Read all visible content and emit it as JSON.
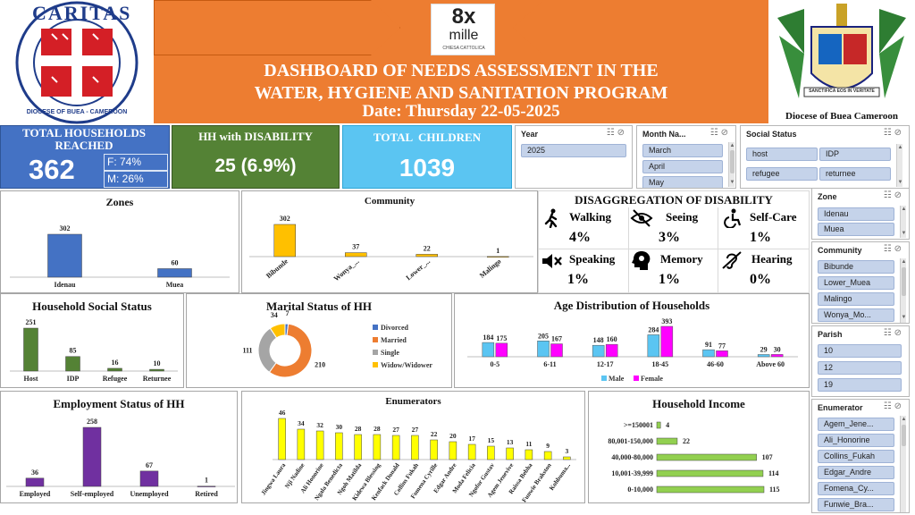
{
  "header": {
    "title_line1": "DASHBOARD OF NEEDS ASSESSMENT IN THE",
    "title_line2": "WATER, HYGIENE AND SANITATION PROGRAM",
    "date_line": "Date: Thursday 22-05-2025",
    "logo_left_text": "CARITAS",
    "logo_left_ring": "DIOCESE OF BUEA - CAMEROON",
    "logo_center_big": "8x",
    "logo_center_mille": "mille",
    "logo_center_sub": "CHIESA CATTOLICA",
    "right_caption": "Diocese of Buea Cameroon",
    "crest_motto": "SANCTIFICA EOS IN VERITATE",
    "colors": {
      "orange": "#ed7d31",
      "blue": "#4472c4",
      "green": "#548235",
      "cyan": "#5bc5f2"
    }
  },
  "kpis": {
    "households_label": "TOTAL HOUSEHOLDS REACHED",
    "households_value": "362",
    "female_pct": "F: 74%",
    "male_pct": "M: 26%",
    "disability_label": "HH with DISABILITY",
    "disability_value": "25 (6.9%)",
    "children_label": "TOTAL  CHILDREN",
    "children_value": "1039"
  },
  "slicers": {
    "year": {
      "title": "Year",
      "items": [
        "2025"
      ]
    },
    "month": {
      "title": "Month Na...",
      "items": [
        "March",
        "April",
        "May"
      ]
    },
    "social": {
      "title": "Social Status",
      "items": [
        "host",
        "IDP",
        "refugee",
        "returnee"
      ]
    },
    "zone": {
      "title": "Zone",
      "items": [
        "Idenau",
        "Muea"
      ]
    },
    "community": {
      "title": "Community",
      "items": [
        "Bibunde",
        "Lower_Muea",
        "Malingo",
        "Wonya_Mo..."
      ]
    },
    "parish": {
      "title": "Parish",
      "items": [
        "10",
        "12",
        "19"
      ]
    },
    "enumerator": {
      "title": "Enumerator",
      "items": [
        "Agem_Jene...",
        "Ali_Honorine",
        "Collins_Fukah",
        "Edgar_Andre",
        "Fomena_Cy...",
        "Funwie_Bra..."
      ]
    }
  },
  "disability": {
    "title": "DISAGGREGATION OF DISABILITY",
    "items": [
      {
        "label": "Walking",
        "value": "4%",
        "icon": "walking-icon"
      },
      {
        "label": "Seeing",
        "value": "3%",
        "icon": "eye-slash-icon"
      },
      {
        "label": "Self-Care",
        "value": "1%",
        "icon": "wheelchair-icon"
      },
      {
        "label": "Speaking",
        "value": "1%",
        "icon": "speaker-mute-icon"
      },
      {
        "label": "Memory",
        "value": "1%",
        "icon": "head-gear-icon"
      },
      {
        "label": "Hearing",
        "value": "0%",
        "icon": "ear-slash-icon"
      }
    ]
  },
  "chart_data": [
    {
      "id": "zones",
      "type": "bar",
      "title": "Zones",
      "categories": [
        "Idenau",
        "Muea"
      ],
      "values": [
        302,
        60
      ],
      "color": "#4472c4"
    },
    {
      "id": "community",
      "type": "bar",
      "title": "Community",
      "categories": [
        "Bibunde",
        "Wonya_...",
        "Lower_...",
        "Malingo"
      ],
      "values": [
        302,
        37,
        22,
        1
      ],
      "color": "#ffc000"
    },
    {
      "id": "social",
      "type": "bar",
      "title": "Household Social Status",
      "categories": [
        "Host",
        "IDP",
        "Refugee",
        "Returnee"
      ],
      "values": [
        251,
        85,
        16,
        10
      ],
      "color": "#548235"
    },
    {
      "id": "marital",
      "type": "pie",
      "title": "Marital Status of HH",
      "categories": [
        "Divorced",
        "Married",
        "Single",
        "Widow/Widower"
      ],
      "values": [
        7,
        210,
        111,
        34
      ],
      "colors": [
        "#4472c4",
        "#ed7d31",
        "#a5a5a5",
        "#ffc000"
      ]
    },
    {
      "id": "age",
      "type": "bar",
      "title": "Age Distribution of Households",
      "categories": [
        "0-5",
        "6-11",
        "12-17",
        "18-45",
        "46-60",
        "Above 60"
      ],
      "series": [
        {
          "name": "Male",
          "values": [
            184,
            205,
            148,
            284,
            91,
            29
          ],
          "color": "#5bc5f2"
        },
        {
          "name": "Female",
          "values": [
            175,
            167,
            160,
            393,
            77,
            30
          ],
          "color": "#ff00ff"
        }
      ]
    },
    {
      "id": "employment",
      "type": "bar",
      "title": "Employment Status of HH",
      "categories": [
        "Employed",
        "Self-employed",
        "Unemployed",
        "Retired"
      ],
      "values": [
        36,
        258,
        67,
        1
      ],
      "color": "#7030a0"
    },
    {
      "id": "enumerators",
      "type": "bar",
      "title": "Enumerators",
      "categories": [
        "Jingwa Laura",
        "Nji Nadine",
        "Ali Honorine",
        "Ngala Benedicta",
        "Ngoh Matilda",
        "Kidewa Blessing",
        "Kenfack Donald",
        "Collins Fukah",
        "Fomena Cyrille",
        "Edgar Andre",
        "Moda Felicia",
        "Ngofor Gustav",
        "Agem Jenevive",
        "Raissa Bebha",
        "Funwie Brakston",
        "Kohbuma..."
      ],
      "values": [
        46,
        34,
        32,
        30,
        28,
        28,
        27,
        27,
        22,
        20,
        17,
        15,
        13,
        11,
        9,
        3
      ],
      "color": "#ffff00"
    },
    {
      "id": "income",
      "type": "bar",
      "orientation": "horizontal",
      "title": "Household Income",
      "categories": [
        ">=150001",
        "80,001-150,000",
        "40,000-80,000",
        "10,001-39,999",
        "0-10,000"
      ],
      "values": [
        4,
        22,
        107,
        114,
        115
      ],
      "color": "#92d050"
    }
  ]
}
